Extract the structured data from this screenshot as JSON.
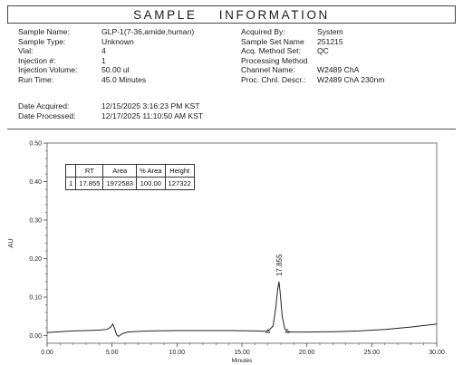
{
  "header": {
    "title": "SAMPLE INFORMATION"
  },
  "info_left": [
    {
      "label": "Sample Name:",
      "value": "GLP-1(7-36,amide,human)"
    },
    {
      "label": "Sample Type:",
      "value": "Unknown"
    },
    {
      "label": "Vial:",
      "value": "4"
    },
    {
      "label": "Injection #:",
      "value": "1"
    },
    {
      "label": "Injection Volume:",
      "value": "50.00 ul"
    },
    {
      "label": "Run Time:",
      "value": "45.0 Minutes"
    }
  ],
  "info_right": [
    {
      "label": "Acquired By:",
      "value": "System"
    },
    {
      "label": "Sample Set Name",
      "value": "251215"
    },
    {
      "label": "Acq. Method Set:",
      "value": "QC"
    },
    {
      "label": "Processing Method",
      "value": ""
    },
    {
      "label": "Channel Name:",
      "value": "W2489 ChA"
    },
    {
      "label": "Proc. Chnl. Descr.:",
      "value": "W2489 ChA 230nm"
    }
  ],
  "dates": [
    {
      "label": "Date Acquired:",
      "value": "12/15/2025 3:16:23 PM KST"
    },
    {
      "label": "Date Processed:",
      "value": "12/17/2025 11:10:50 AM KST"
    }
  ],
  "peak_table": {
    "headers": [
      "",
      "RT",
      "Area",
      "% Area",
      "Height"
    ],
    "rows": [
      [
        "1",
        "17.855",
        "1972583",
        "100.00",
        "127322"
      ]
    ]
  },
  "chart_data": {
    "type": "line",
    "xlabel": "Minutes",
    "ylabel": "AU",
    "xlim": [
      0,
      30
    ],
    "ylim": [
      -0.02,
      0.5
    ],
    "x_ticks": [
      "0.00",
      "5.00",
      "10.00",
      "15.00",
      "20.00",
      "25.00",
      "30.00"
    ],
    "y_ticks": [
      "0.00",
      "0.10",
      "0.20",
      "0.30",
      "0.40",
      "0.50"
    ],
    "peak_label": "17.855",
    "peak_rt": 17.855,
    "peak_height": 0.14,
    "integration_marks_x": [
      17.0,
      18.5
    ],
    "series": [
      {
        "x": [
          0,
          1,
          2,
          3,
          4,
          4.6,
          4.9,
          5.05,
          5.2,
          5.35,
          5.5,
          5.8,
          6.2,
          7,
          8,
          10,
          12,
          14,
          16,
          17.0,
          17.4,
          17.6,
          17.75,
          17.855,
          17.95,
          18.1,
          18.3,
          18.5,
          19,
          20,
          22,
          24,
          26,
          28,
          30
        ],
        "y": [
          0.008,
          0.01,
          0.012,
          0.013,
          0.014,
          0.016,
          0.022,
          0.03,
          0.018,
          0.002,
          -0.002,
          0.005,
          0.009,
          0.011,
          0.012,
          0.013,
          0.013,
          0.013,
          0.012,
          0.011,
          0.025,
          0.07,
          0.12,
          0.14,
          0.11,
          0.05,
          0.018,
          0.01,
          0.009,
          0.009,
          0.01,
          0.012,
          0.016,
          0.022,
          0.03
        ]
      }
    ],
    "line_color": "#222222",
    "grid": false
  }
}
